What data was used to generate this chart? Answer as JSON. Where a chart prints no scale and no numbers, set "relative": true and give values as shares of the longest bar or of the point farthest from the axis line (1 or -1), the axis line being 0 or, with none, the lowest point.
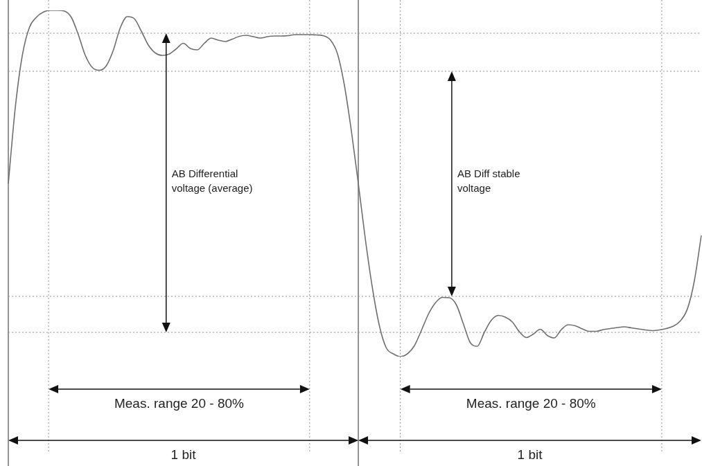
{
  "chart_data": {
    "type": "line",
    "relative": true,
    "legend": false,
    "marker": "none",
    "line_style": "solid",
    "categories": [
      null,
      null,
      null,
      null,
      null,
      null,
      null,
      null,
      null,
      null,
      null,
      null,
      null,
      null,
      null,
      null,
      null,
      null,
      null,
      null,
      null,
      null,
      null,
      null,
      null,
      null,
      null,
      null,
      null,
      null,
      null,
      null,
      null,
      null,
      null,
      null,
      null,
      null,
      null,
      null,
      null,
      null,
      null,
      null,
      null,
      null,
      null,
      null,
      null,
      null,
      null,
      null,
      null,
      null,
      null,
      null,
      null,
      null,
      null,
      null,
      null,
      null,
      null,
      null,
      null,
      null,
      null,
      null,
      null,
      null,
      null,
      null,
      null,
      null,
      null,
      null,
      null,
      null,
      null,
      null,
      null,
      null,
      null,
      null,
      null,
      null,
      null,
      null,
      null,
      null,
      null,
      null,
      null,
      null,
      null,
      null,
      null,
      null,
      null,
      null
    ],
    "series": [
      {
        "color": "#6e6e6e",
        "values": [
          0.5,
          0.72,
          0.87,
          0.95,
          0.98,
          0.995,
          1,
          1,
          0.998,
          0.98,
          0.93,
          0.87,
          0.835,
          0.827,
          0.84,
          0.885,
          0.95,
          0.982,
          0.976,
          0.94,
          0.9,
          0.877,
          0.87,
          0.874,
          0.889,
          0.905,
          0.89,
          0.886,
          0.905,
          0.92,
          0.914,
          0.91,
          0.917,
          0.925,
          0.928,
          0.924,
          0.92,
          0.924,
          0.926,
          0.926,
          0.927,
          0.93,
          0.93,
          0.93,
          0.929,
          0.927,
          0.915,
          0.876,
          0.785,
          0.653,
          0.5,
          0.34,
          0.2,
          0.09,
          0.025,
          0.008,
          0,
          0.008,
          0.031,
          0.075,
          0.122,
          0.155,
          0.171,
          0.17,
          0.15,
          0.095,
          0.04,
          0.03,
          0.07,
          0.105,
          0.119,
          0.114,
          0.1,
          0.072,
          0.055,
          0.065,
          0.079,
          0.061,
          0.054,
          0.078,
          0.092,
          0.089,
          0.08,
          0.073,
          0.073,
          0.078,
          0.081,
          0.084,
          0.086,
          0.083,
          0.08,
          0.077,
          0.075,
          0.077,
          0.081,
          0.088,
          0.103,
          0.137,
          0.218,
          0.35
        ]
      }
    ],
    "ref_lines": [
      {
        "axis": "y",
        "value": 0.934,
        "color": "#909090",
        "line_style": "dotted"
      },
      {
        "axis": "y",
        "value": 0.824,
        "color": "#909090",
        "line_style": "dotted"
      },
      {
        "axis": "y",
        "value": 0.174,
        "color": "#909090",
        "line_style": "dotted"
      },
      {
        "axis": "y",
        "value": 0.07,
        "color": "#909090",
        "line_style": "dotted"
      }
    ],
    "annotations": [
      "AB Differential voltage (average)",
      "AB Diff stable voltage",
      "Meas. range 20 - 80%",
      "Meas. range 20 - 80%",
      "1 bit",
      "1 bit"
    ]
  }
}
